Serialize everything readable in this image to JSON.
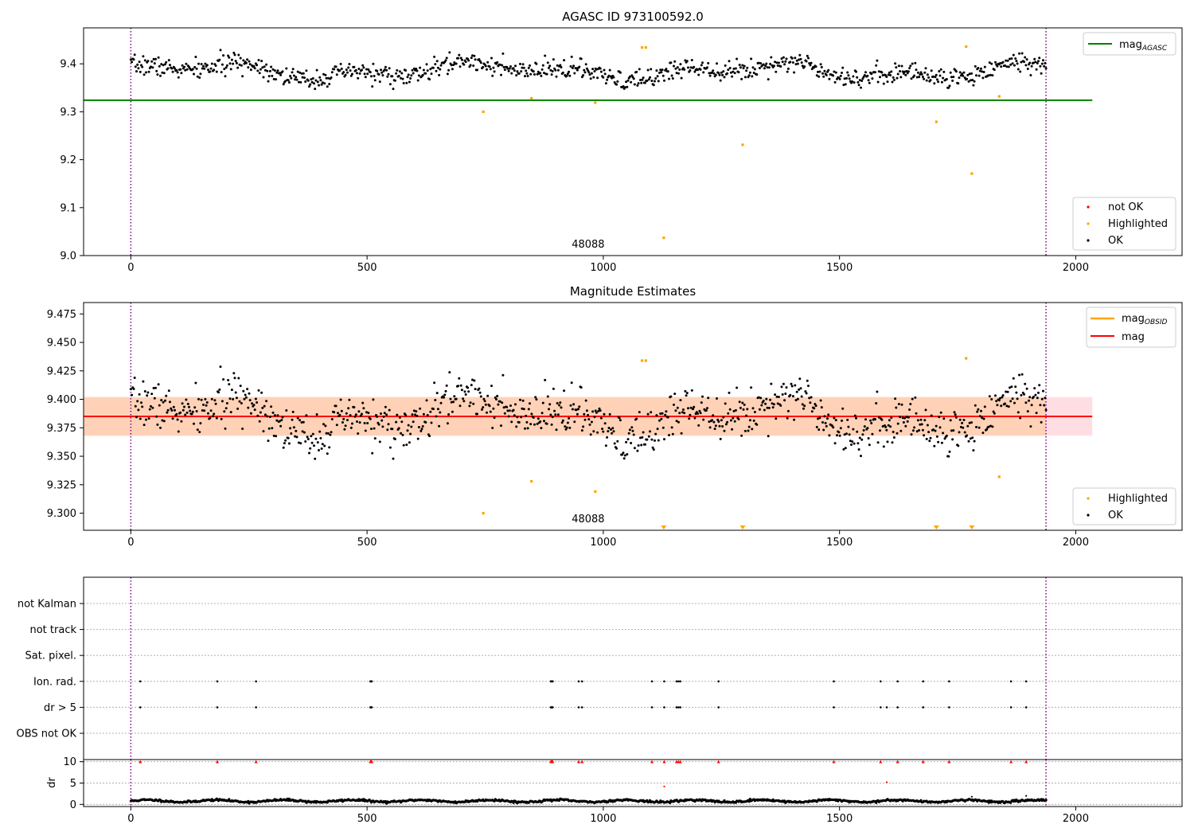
{
  "chart_data": [
    {
      "type": "scatter",
      "title": "AGASC ID 973100592.0",
      "xlim": [
        -100,
        2225
      ],
      "ylim": [
        9.0,
        9.475
      ],
      "xticks": [
        0,
        500,
        1000,
        1500,
        2000
      ],
      "yticks": [
        9.0,
        9.1,
        9.2,
        9.3,
        9.4
      ],
      "ytick_decimals": 1,
      "vlines": [
        0,
        1937
      ],
      "obsid_label": {
        "text": "48088",
        "x": 968
      },
      "hlines": [
        {
          "name": "mag_AGASC",
          "y": 9.324,
          "x": [
            -100,
            2035
          ],
          "color": "#008000"
        }
      ],
      "series_model": {
        "kind": "ok",
        "n": 960,
        "x_range": [
          0,
          1937
        ],
        "center": 9.385,
        "amplitude": 0.022,
        "noise": 0.01,
        "seed": 7
      },
      "highlighted_points": [
        [
          746,
          9.3
        ],
        [
          848,
          9.328
        ],
        [
          983,
          9.319
        ],
        [
          1082,
          9.434
        ],
        [
          1090,
          9.434
        ],
        [
          1128,
          9.037
        ],
        [
          1295,
          9.231
        ],
        [
          1705,
          9.279
        ],
        [
          1768,
          9.436
        ],
        [
          1780,
          9.171
        ],
        [
          1838,
          9.332
        ]
      ],
      "legend_lines": [
        "mag_AGASC"
      ],
      "legend_points": [
        {
          "label": "not OK",
          "color": "#ff0000"
        },
        {
          "label": "Highlighted",
          "color": "#ffa500"
        },
        {
          "label": "OK",
          "color": "#000000"
        }
      ]
    },
    {
      "type": "scatter",
      "title": "Magnitude Estimates",
      "xlim": [
        -100,
        2225
      ],
      "ylim": [
        9.285,
        9.485
      ],
      "xticks": [
        0,
        500,
        1000,
        1500,
        2000
      ],
      "yticks": [
        9.3,
        9.325,
        9.35,
        9.375,
        9.4,
        9.425,
        9.45,
        9.475
      ],
      "ytick_decimals": 3,
      "vlines": [
        0,
        1937
      ],
      "obsid_label": {
        "text": "48088",
        "x": 968
      },
      "hlines": [
        {
          "name": "mag",
          "y": 9.385,
          "x": [
            -100,
            2035
          ],
          "color": "#ff0000"
        }
      ],
      "bands": [
        {
          "name": "mag range",
          "y": [
            9.368,
            9.402
          ],
          "x": [
            -100,
            2035
          ],
          "color": "#ffb6c1"
        },
        {
          "name": "mag_OBSID range",
          "y": [
            9.368,
            9.402
          ],
          "x": [
            -100,
            1937
          ],
          "color": "#ffd0b0"
        }
      ],
      "series_model": {
        "kind": "ok",
        "n": 960,
        "x_range": [
          0,
          1937
        ],
        "center": 9.385,
        "amplitude": 0.022,
        "noise": 0.01,
        "seed": 7
      },
      "highlighted_points": [
        [
          746,
          9.3
        ],
        [
          848,
          9.328
        ],
        [
          983,
          9.319
        ],
        [
          1082,
          9.434
        ],
        [
          1090,
          9.434
        ],
        [
          1768,
          9.436
        ],
        [
          1838,
          9.332
        ]
      ],
      "clipped_x": [
        1128,
        1295,
        1705,
        1780
      ],
      "legend_lines": [
        "mag_OBSID",
        "mag"
      ],
      "legend_points": [
        {
          "label": "Highlighted",
          "color": "#ffa500"
        },
        {
          "label": "OK",
          "color": "#000000"
        }
      ]
    },
    {
      "type": "scatter",
      "title": "",
      "xlim": [
        -100,
        2225
      ],
      "xticks": [
        0,
        500,
        1000,
        1500,
        2000
      ],
      "vlines": [
        0,
        1937
      ],
      "flag_categories": [
        "not Kalman",
        "not track",
        "Sat. pixel.",
        "Ion. rad.",
        "dr > 5",
        "OBS not OK"
      ],
      "flag_points": {
        "Ion. rad.": [
          20,
          183,
          265,
          507,
          508,
          509,
          510,
          889,
          890,
          891,
          892,
          893,
          948,
          955,
          1103,
          1129,
          1155,
          1159,
          1163,
          1244,
          1488,
          1587,
          1623,
          1677,
          1732,
          1863,
          1895
        ],
        "dr > 5": [
          20,
          183,
          265,
          507,
          508,
          509,
          510,
          889,
          890,
          891,
          892,
          893,
          948,
          955,
          1103,
          1129,
          1155,
          1159,
          1163,
          1244,
          1488,
          1587,
          1600,
          1623,
          1677,
          1732,
          1863,
          1895
        ]
      },
      "dr_ylabel": "dr",
      "dr_ylim": [
        -0.5,
        10.5
      ],
      "dr_yticks": [
        0,
        5,
        10
      ],
      "dr_clipped_x": [
        20,
        183,
        265,
        507,
        508,
        509,
        510,
        889,
        890,
        891,
        892,
        893,
        948,
        955,
        1103,
        1129,
        1155,
        1159,
        1163,
        1244,
        1488,
        1587,
        1623,
        1677,
        1732,
        1863,
        1895
      ],
      "dr_outliers": [
        [
          1129,
          4.2
        ],
        [
          1600,
          5.2
        ],
        [
          1780,
          1.8
        ],
        [
          1895,
          2.0
        ]
      ],
      "dr_model": {
        "n": 960,
        "x_range": [
          0,
          1937
        ],
        "center": 0.8,
        "amplitude": 0.25,
        "noise": 0.12,
        "seed": 11
      }
    }
  ]
}
